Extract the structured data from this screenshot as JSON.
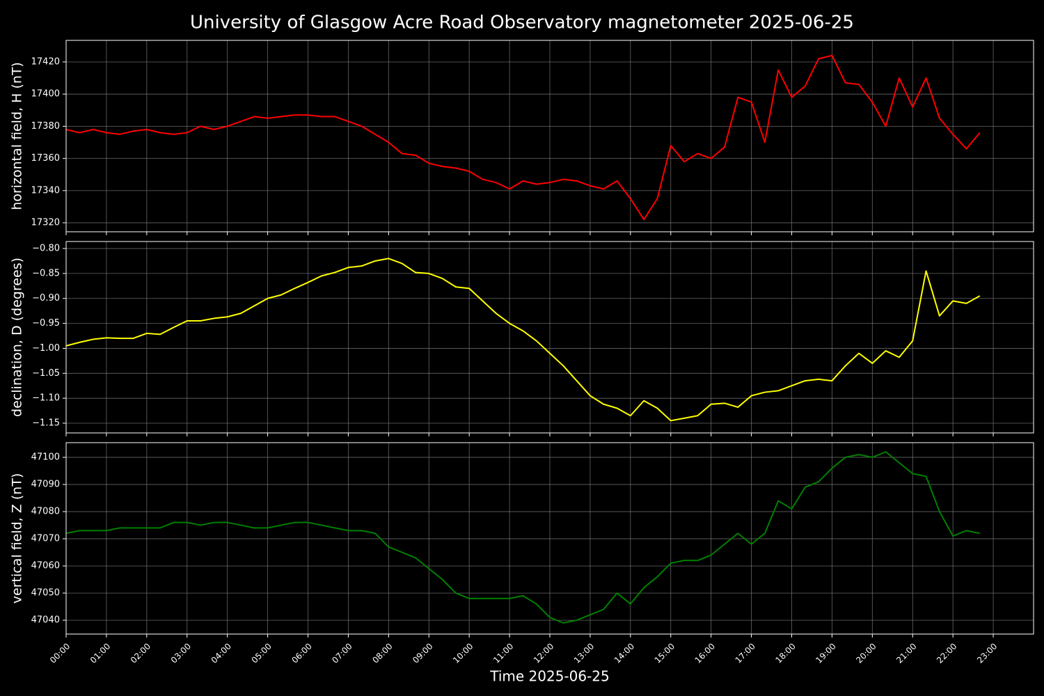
{
  "chart_data": [
    {
      "type": "line",
      "title": "University of Glasgow Acre Road Observatory magnetometer 2025-06-25",
      "y_label": "horizontal field, H (nT)",
      "x": [
        "00:00",
        "00:20",
        "00:40",
        "01:00",
        "01:20",
        "01:40",
        "02:00",
        "02:20",
        "02:40",
        "03:00",
        "03:20",
        "03:40",
        "04:00",
        "04:20",
        "04:40",
        "05:00",
        "05:20",
        "05:40",
        "06:00",
        "06:20",
        "06:40",
        "07:00",
        "07:20",
        "07:40",
        "08:00",
        "08:20",
        "08:40",
        "09:00",
        "09:20",
        "09:40",
        "10:00",
        "10:20",
        "10:40",
        "11:00",
        "11:20",
        "11:40",
        "12:00",
        "12:20",
        "12:40",
        "13:00",
        "13:20",
        "13:40",
        "14:00",
        "14:20",
        "14:40",
        "15:00",
        "15:20",
        "15:40",
        "16:00",
        "16:20",
        "16:40",
        "17:00",
        "17:20",
        "17:40",
        "18:00",
        "18:20",
        "18:40",
        "19:00",
        "19:20",
        "19:40",
        "20:00",
        "20:20",
        "20:40",
        "21:00",
        "21:20",
        "21:40",
        "22:00",
        "22:20",
        "22:40"
      ],
      "series": [
        {
          "name": "H",
          "color": "#ff0000",
          "values": [
            17378,
            17376,
            17378,
            17376,
            17375,
            17377,
            17378,
            17376,
            17375,
            17376,
            17380,
            17378,
            17380,
            17383,
            17386,
            17385,
            17386,
            17387,
            17387,
            17386,
            17386,
            17383,
            17380,
            17375,
            17370,
            17363,
            17362,
            17357,
            17355,
            17354,
            17352,
            17347,
            17345,
            17341,
            17346,
            17344,
            17345,
            17347,
            17346,
            17343,
            17341,
            17346,
            17335,
            17322,
            17335,
            17368,
            17358,
            17363,
            17360,
            17367,
            17398,
            17395,
            17370,
            17415,
            17398,
            17405,
            17422,
            17424,
            17407,
            17406,
            17395,
            17380,
            17410,
            17392,
            17410,
            17385,
            17375,
            17366,
            17376
          ]
        }
      ],
      "xlim": [
        "00:00",
        "24:00"
      ],
      "xticks": [
        "00:00",
        "01:00",
        "02:00",
        "03:00",
        "04:00",
        "05:00",
        "06:00",
        "07:00",
        "08:00",
        "09:00",
        "10:00",
        "11:00",
        "12:00",
        "13:00",
        "14:00",
        "15:00",
        "16:00",
        "17:00",
        "18:00",
        "19:00",
        "20:00",
        "21:00",
        "22:00",
        "23:00"
      ],
      "ylim": [
        17314.4,
        17433.4
      ],
      "yticks": [
        17320,
        17340,
        17360,
        17380,
        17400,
        17420
      ],
      "grid": true
    },
    {
      "type": "line",
      "y_label": "declination, D (degrees)",
      "x": [
        "00:00",
        "00:20",
        "00:40",
        "01:00",
        "01:20",
        "01:40",
        "02:00",
        "02:20",
        "02:40",
        "03:00",
        "03:20",
        "03:40",
        "04:00",
        "04:20",
        "04:40",
        "05:00",
        "05:20",
        "05:40",
        "06:00",
        "06:20",
        "06:40",
        "07:00",
        "07:20",
        "07:40",
        "08:00",
        "08:20",
        "08:40",
        "09:00",
        "09:20",
        "09:40",
        "10:00",
        "10:20",
        "10:40",
        "11:00",
        "11:20",
        "11:40",
        "12:00",
        "12:20",
        "12:40",
        "13:00",
        "13:20",
        "13:40",
        "14:00",
        "14:20",
        "14:40",
        "15:00",
        "15:20",
        "15:40",
        "16:00",
        "16:20",
        "16:40",
        "17:00",
        "17:20",
        "17:40",
        "18:00",
        "18:20",
        "18:40",
        "19:00",
        "19:20",
        "19:40",
        "20:00",
        "20:20",
        "20:40",
        "21:00",
        "21:20",
        "21:40",
        "22:00",
        "22:20",
        "22:40"
      ],
      "series": [
        {
          "name": "D",
          "color": "#ffff00",
          "values": [
            -0.995,
            -0.988,
            -0.982,
            -0.979,
            -0.98,
            -0.98,
            -0.97,
            -0.972,
            -0.958,
            -0.945,
            -0.945,
            -0.94,
            -0.937,
            -0.93,
            -0.915,
            -0.9,
            -0.893,
            -0.88,
            -0.868,
            -0.855,
            -0.848,
            -0.838,
            -0.835,
            -0.825,
            -0.82,
            -0.83,
            -0.848,
            -0.85,
            -0.86,
            -0.877,
            -0.88,
            -0.905,
            -0.93,
            -0.95,
            -0.965,
            -0.985,
            -1.01,
            -1.035,
            -1.065,
            -1.095,
            -1.112,
            -1.12,
            -1.135,
            -1.105,
            -1.12,
            -1.145,
            -1.14,
            -1.135,
            -1.112,
            -1.11,
            -1.118,
            -1.095,
            -1.088,
            -1.085,
            -1.075,
            -1.065,
            -1.062,
            -1.065,
            -1.035,
            -1.01,
            -1.03,
            -1.005,
            -1.018,
            -0.985,
            -0.845,
            -0.935,
            -0.905,
            -0.91,
            -0.895
          ]
        }
      ],
      "xlim": [
        "00:00",
        "24:00"
      ],
      "xticks": [
        "00:00",
        "01:00",
        "02:00",
        "03:00",
        "04:00",
        "05:00",
        "06:00",
        "07:00",
        "08:00",
        "09:00",
        "10:00",
        "11:00",
        "12:00",
        "13:00",
        "14:00",
        "15:00",
        "16:00",
        "17:00",
        "18:00",
        "19:00",
        "20:00",
        "21:00",
        "22:00",
        "23:00"
      ],
      "ylim": [
        -1.1695,
        -0.786
      ],
      "yticks": [
        {
          "value": -1.15,
          "label": "−1.15"
        },
        {
          "value": -1.1,
          "label": "−1.10"
        },
        {
          "value": -1.05,
          "label": "−1.05"
        },
        {
          "value": -1.0,
          "label": "−1.00"
        },
        {
          "value": -0.95,
          "label": "−0.95"
        },
        {
          "value": -0.9,
          "label": "−0.90"
        },
        {
          "value": -0.85,
          "label": "−0.85"
        },
        {
          "value": -0.8,
          "label": "−0.80"
        }
      ],
      "grid": true
    },
    {
      "type": "line",
      "y_label": "vertical field, Z (nT)",
      "x_label": "Time 2025-06-25",
      "x": [
        "00:00",
        "00:20",
        "00:40",
        "01:00",
        "01:20",
        "01:40",
        "02:00",
        "02:20",
        "02:40",
        "03:00",
        "03:20",
        "03:40",
        "04:00",
        "04:20",
        "04:40",
        "05:00",
        "05:20",
        "05:40",
        "06:00",
        "06:20",
        "06:40",
        "07:00",
        "07:20",
        "07:40",
        "08:00",
        "08:20",
        "08:40",
        "09:00",
        "09:20",
        "09:40",
        "10:00",
        "10:20",
        "10:40",
        "11:00",
        "11:20",
        "11:40",
        "12:00",
        "12:20",
        "12:40",
        "13:00",
        "13:20",
        "13:40",
        "14:00",
        "14:20",
        "14:40",
        "15:00",
        "15:20",
        "15:40",
        "16:00",
        "16:20",
        "16:40",
        "17:00",
        "17:20",
        "17:40",
        "18:00",
        "18:20",
        "18:40",
        "19:00",
        "19:20",
        "19:40",
        "20:00",
        "20:20",
        "20:40",
        "21:00",
        "21:20",
        "21:40",
        "22:00",
        "22:20",
        "22:40"
      ],
      "series": [
        {
          "name": "Z",
          "color": "#008000",
          "values": [
            47072,
            47073,
            47073,
            47073,
            47074,
            47074,
            47074,
            47074,
            47076,
            47076,
            47075,
            47076,
            47076,
            47075,
            47074,
            47074,
            47075,
            47076,
            47076,
            47075,
            47074,
            47073,
            47073,
            47072,
            47067,
            47065,
            47063,
            47059,
            47055,
            47050,
            47048,
            47048,
            47048,
            47048,
            47049,
            47046,
            47041,
            47039,
            47040,
            47042,
            47044,
            47050,
            47046,
            47052,
            47056,
            47061,
            47062,
            47062,
            47064,
            47068,
            47072,
            47068,
            47072,
            47084,
            47081,
            47089,
            47091,
            47096,
            47100,
            47101,
            47100,
            47102,
            47098,
            47094,
            47093,
            47080,
            47071,
            47073,
            47072
          ]
        }
      ],
      "xlim": [
        "00:00",
        "24:00"
      ],
      "xticks": [
        "00:00",
        "01:00",
        "02:00",
        "03:00",
        "04:00",
        "05:00",
        "06:00",
        "07:00",
        "08:00",
        "09:00",
        "10:00",
        "11:00",
        "12:00",
        "13:00",
        "14:00",
        "15:00",
        "16:00",
        "17:00",
        "18:00",
        "19:00",
        "20:00",
        "21:00",
        "22:00",
        "23:00"
      ],
      "ylim": [
        47034.9,
        47105.4
      ],
      "yticks": [
        47040,
        47050,
        47060,
        47070,
        47080,
        47090,
        47100
      ],
      "grid": true
    }
  ]
}
